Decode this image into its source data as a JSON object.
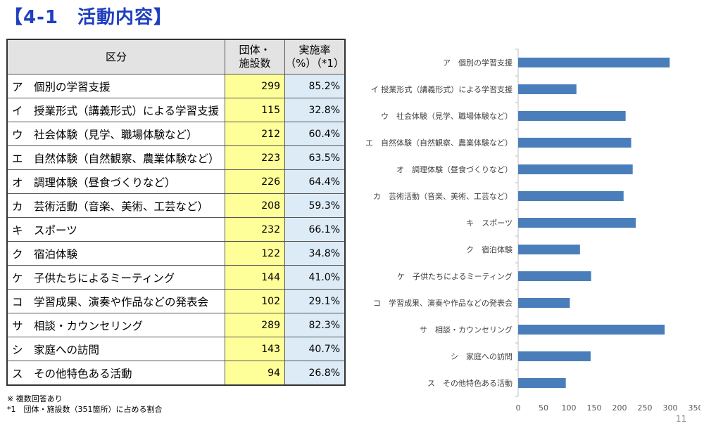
{
  "title": "【4-1　活動内容】",
  "table": {
    "headers": {
      "category": "区分",
      "count_line1": "団体・",
      "count_line2": "施設数",
      "rate_line1": "実施率",
      "rate_line2": "（%）（*1）"
    },
    "rows": [
      {
        "label": "ア　個別の学習支援",
        "count": "299",
        "rate": "85.2%"
      },
      {
        "label": "イ　授業形式（講義形式）による学習支援",
        "count": "115",
        "rate": "32.8%"
      },
      {
        "label": "ウ　社会体験（見学、職場体験など）",
        "count": "212",
        "rate": "60.4%"
      },
      {
        "label": "エ　自然体験（自然観察、農業体験など）",
        "count": "223",
        "rate": "63.5%"
      },
      {
        "label": "オ　調理体験（昼食づくりなど）",
        "count": "226",
        "rate": "64.4%"
      },
      {
        "label": "カ　芸術活動（音楽、美術、工芸など）",
        "count": "208",
        "rate": "59.3%"
      },
      {
        "label": "キ　スポーツ",
        "count": "232",
        "rate": "66.1%"
      },
      {
        "label": "ク　宿泊体験",
        "count": "122",
        "rate": "34.8%"
      },
      {
        "label": "ケ　子供たちによるミーティング",
        "count": "144",
        "rate": "41.0%"
      },
      {
        "label": "コ　学習成果、演奏や作品などの発表会",
        "count": "102",
        "rate": "29.1%"
      },
      {
        "label": "サ　相談・カウンセリング",
        "count": "289",
        "rate": "82.3%"
      },
      {
        "label": "シ　家庭への訪問",
        "count": "143",
        "rate": "40.7%"
      },
      {
        "label": "ス　その他特色ある活動",
        "count": "94",
        "rate": "26.8%"
      }
    ]
  },
  "notes": {
    "line1": "※ 複数回答あり",
    "line2": "*1　団体・施設数（351箇所）に占める割合"
  },
  "page_number": "11",
  "chart_data": {
    "type": "bar",
    "orientation": "horizontal",
    "categories": [
      "ア　個別の学習支援",
      "イ 授業形式（講義形式）による学習支援",
      "ウ　社会体験（見学、職場体験など）",
      "エ　自然体験（自然観察、農業体験など）",
      "オ　調理体験（昼食づくりなど）",
      "カ　芸術活動（音楽、美術、工芸など）",
      "キ　スポーツ",
      "ク　宿泊体験",
      "ケ　子供たちによるミーティング",
      "コ　学習成果、演奏や作品などの発表会",
      "サ　相談・カウンセリング",
      "シ　家庭への訪問",
      "ス　その他特色ある活動"
    ],
    "values": [
      299,
      115,
      212,
      223,
      226,
      208,
      232,
      122,
      144,
      102,
      289,
      143,
      94
    ],
    "xlim": [
      0,
      350
    ],
    "xticks": [
      0,
      50,
      100,
      150,
      200,
      250,
      300,
      350
    ],
    "bar_color": "#4a7ebb",
    "grid": false,
    "legend": false
  }
}
